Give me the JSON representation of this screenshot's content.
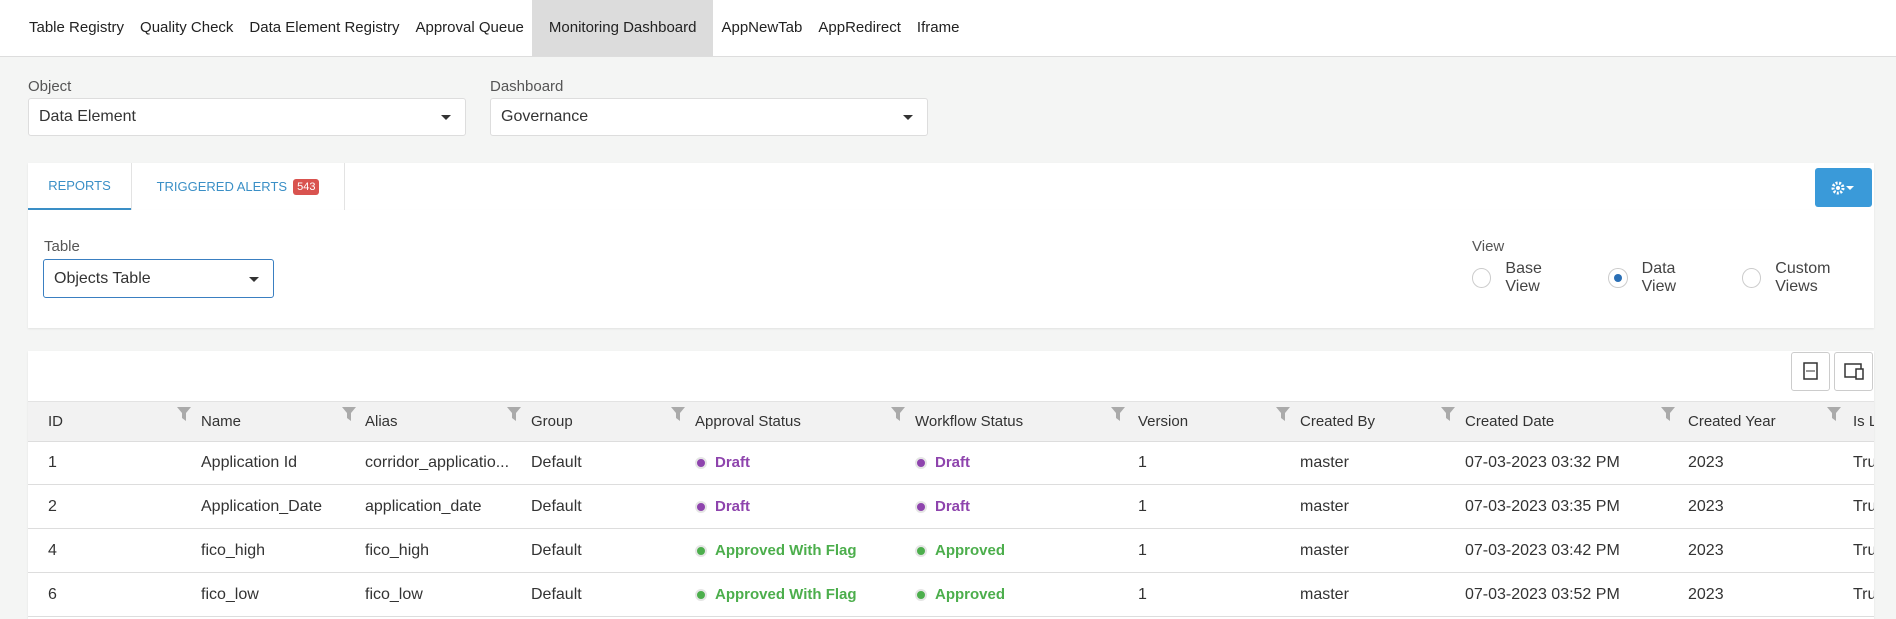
{
  "nav": {
    "items": [
      "Table Registry",
      "Quality Check",
      "Data Element Registry",
      "Approval Queue",
      "Monitoring Dashboard",
      "AppNewTab",
      "AppRedirect",
      "Iframe"
    ],
    "active": 4
  },
  "filters": {
    "object": {
      "label": "Object",
      "value": "Data Element"
    },
    "dashboard": {
      "label": "Dashboard",
      "value": "Governance"
    }
  },
  "tabs": {
    "reports": "REPORTS",
    "alerts": "TRIGGERED ALERTS",
    "alerts_count": 543
  },
  "table_picker": {
    "label": "Table",
    "value": "Objects Table"
  },
  "view": {
    "label": "View",
    "options": [
      {
        "label": "Base View",
        "selected": false
      },
      {
        "label": "Data View",
        "selected": true
      },
      {
        "label": "Custom Views",
        "selected": false
      }
    ]
  },
  "table": {
    "columns": [
      "ID",
      "Name",
      "Alias",
      "Group",
      "Approval Status",
      "Workflow Status",
      "Version",
      "Created By",
      "Created Date",
      "Created Year",
      "Is L"
    ],
    "rows": [
      [
        "1",
        "Application Id",
        "corridor_applicatio...",
        "Default",
        {
          "text": "Draft",
          "color": "#8e44ad"
        },
        {
          "text": "Draft",
          "color": "#8e44ad"
        },
        "1",
        "master",
        "07-03-2023 03:32 PM",
        "2023",
        "Tru"
      ],
      [
        "2",
        "Application_Date",
        "application_date",
        "Default",
        {
          "text": "Draft",
          "color": "#8e44ad"
        },
        {
          "text": "Draft",
          "color": "#8e44ad"
        },
        "1",
        "master",
        "07-03-2023 03:35 PM",
        "2023",
        "Tru"
      ],
      [
        "4",
        "fico_high",
        "fico_high",
        "Default",
        {
          "text": "Approved With Flag",
          "color": "#4cae4c"
        },
        {
          "text": "Approved",
          "color": "#4cae4c"
        },
        "1",
        "master",
        "07-03-2023 03:42 PM",
        "2023",
        "Tru"
      ],
      [
        "6",
        "fico_low",
        "fico_low",
        "Default",
        {
          "text": "Approved With Flag",
          "color": "#4cae4c"
        },
        {
          "text": "Approved",
          "color": "#4cae4c"
        },
        "1",
        "master",
        "07-03-2023 03:52 PM",
        "2023",
        "Tru"
      ]
    ]
  }
}
